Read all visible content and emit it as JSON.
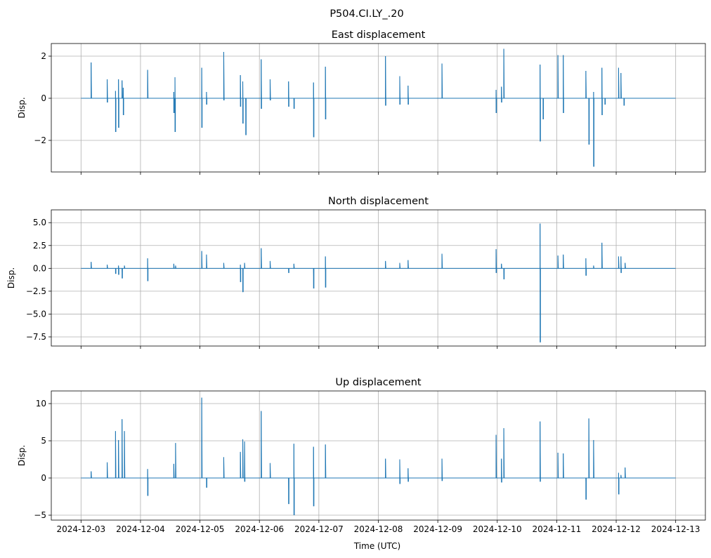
{
  "chart_data": {
    "type": "line",
    "suptitle": "P504.CI.LY_.20",
    "xlabel": "Time (UTC)",
    "x_unit": "days since 2024-12-03 00:00 UTC",
    "xlim": [
      -0.5,
      10.5
    ],
    "data_range": [
      0,
      10
    ],
    "x_tick_labels": [
      "2024-12-03",
      "2024-12-04",
      "2024-12-05",
      "2024-12-06",
      "2024-12-07",
      "2024-12-08",
      "2024-12-09",
      "2024-12-10",
      "2024-12-11",
      "2024-12-12",
      "2024-12-13"
    ],
    "color": "#1f77b4",
    "grid": true,
    "panels": [
      {
        "title": "East displacement",
        "ylabel": "Disp.",
        "ylim": [
          -3.5,
          2.6
        ],
        "yticks": [
          -2,
          0,
          2
        ],
        "ytick_labels": [
          "−2",
          "0",
          "2"
        ],
        "spikes": [
          [
            0.17,
            1.7,
            0
          ],
          [
            0.44,
            0.9,
            -0.2
          ],
          [
            0.58,
            0.35,
            -1.6
          ],
          [
            0.63,
            0.9,
            -1.4
          ],
          [
            0.69,
            0.85,
            0
          ],
          [
            0.71,
            0.5,
            -0.8
          ],
          [
            1.12,
            1.35,
            0
          ],
          [
            1.56,
            0.3,
            -0.7
          ],
          [
            1.58,
            1.0,
            -1.6
          ],
          [
            2.03,
            1.45,
            -1.4
          ],
          [
            2.11,
            0.3,
            -0.3
          ],
          [
            2.4,
            2.2,
            -0.1
          ],
          [
            2.68,
            1.1,
            -0.4
          ],
          [
            2.72,
            0.8,
            -1.2
          ],
          [
            2.77,
            0,
            -1.75
          ],
          [
            3.03,
            1.85,
            -0.5
          ],
          [
            3.18,
            0.9,
            -0.1
          ],
          [
            3.49,
            0.8,
            -0.4
          ],
          [
            3.58,
            0,
            -0.5
          ],
          [
            3.91,
            0.75,
            -1.85
          ],
          [
            4.11,
            1.5,
            -1.0
          ],
          [
            5.12,
            2.0,
            -0.35
          ],
          [
            5.36,
            1.05,
            -0.3
          ],
          [
            5.5,
            0.6,
            -0.3
          ],
          [
            6.07,
            1.65,
            0
          ],
          [
            6.98,
            0.4,
            -0.7
          ],
          [
            7.07,
            0.55,
            -0.2
          ],
          [
            7.11,
            2.35,
            0
          ],
          [
            7.72,
            1.6,
            -2.05
          ],
          [
            7.77,
            0,
            -1.0
          ],
          [
            8.02,
            2.05,
            0
          ],
          [
            8.11,
            2.05,
            -0.7
          ],
          [
            8.49,
            1.3,
            0
          ],
          [
            8.54,
            0,
            -2.2
          ],
          [
            8.62,
            0.3,
            -3.25
          ],
          [
            8.76,
            1.45,
            -0.8
          ],
          [
            8.81,
            0,
            -0.3
          ],
          [
            9.04,
            1.45,
            0
          ],
          [
            9.08,
            1.2,
            0
          ],
          [
            9.13,
            0,
            -0.35
          ]
        ]
      },
      {
        "title": "North displacement",
        "ylabel": "Disp.",
        "ylim": [
          -8.5,
          6.4
        ],
        "yticks": [
          -7.5,
          -5,
          -2.5,
          0,
          2.5,
          5
        ],
        "ytick_labels": [
          "−7.5",
          "−5.0",
          "−2.5",
          "0.0",
          "2.5",
          "5.0"
        ],
        "spikes": [
          [
            0.17,
            0.7,
            0
          ],
          [
            0.44,
            0.4,
            0
          ],
          [
            0.58,
            0,
            -0.6
          ],
          [
            0.63,
            0.3,
            -0.7
          ],
          [
            0.69,
            0,
            -1.1
          ],
          [
            0.73,
            0.3,
            0
          ],
          [
            1.12,
            1.1,
            -1.4
          ],
          [
            1.56,
            0.5,
            0
          ],
          [
            1.59,
            0.3,
            0
          ],
          [
            2.03,
            1.9,
            0
          ],
          [
            2.11,
            1.5,
            0
          ],
          [
            2.4,
            0.6,
            0
          ],
          [
            2.68,
            0.4,
            -1.5
          ],
          [
            2.72,
            0,
            -2.6
          ],
          [
            2.75,
            0.6,
            0
          ],
          [
            3.03,
            2.2,
            0
          ],
          [
            3.18,
            0.8,
            0
          ],
          [
            3.49,
            0,
            -0.5
          ],
          [
            3.58,
            0.5,
            0
          ],
          [
            3.91,
            0,
            -2.2
          ],
          [
            4.11,
            1.3,
            -2.1
          ],
          [
            5.12,
            0.8,
            0
          ],
          [
            5.36,
            0.6,
            0
          ],
          [
            5.5,
            0.9,
            0
          ],
          [
            6.07,
            1.6,
            0
          ],
          [
            6.98,
            2.1,
            -0.5
          ],
          [
            7.07,
            0.5,
            0
          ],
          [
            7.11,
            0,
            -1.2
          ],
          [
            7.72,
            4.9,
            -8.1
          ],
          [
            8.02,
            1.4,
            0
          ],
          [
            8.11,
            1.5,
            0
          ],
          [
            8.49,
            1.1,
            -0.8
          ],
          [
            8.62,
            0.3,
            0
          ],
          [
            8.76,
            2.8,
            0
          ],
          [
            9.04,
            1.3,
            0
          ],
          [
            9.08,
            1.3,
            -0.5
          ],
          [
            9.15,
            0.6,
            0
          ]
        ]
      },
      {
        "title": "Up displacement",
        "ylabel": "Disp.",
        "ylim": [
          -5.66,
          11.7
        ],
        "yticks": [
          -5,
          0,
          5,
          10
        ],
        "ytick_labels": [
          "−5",
          "0",
          "5",
          "10"
        ],
        "spikes": [
          [
            0.17,
            0.9,
            0
          ],
          [
            0.44,
            2.1,
            0
          ],
          [
            0.58,
            6.3,
            0
          ],
          [
            0.63,
            5.1,
            0
          ],
          [
            0.69,
            7.9,
            0
          ],
          [
            0.73,
            6.3,
            0
          ],
          [
            1.12,
            1.2,
            -2.4
          ],
          [
            1.56,
            1.9,
            0
          ],
          [
            1.59,
            4.7,
            0
          ],
          [
            2.03,
            10.8,
            0
          ],
          [
            2.11,
            0,
            -1.3
          ],
          [
            2.4,
            2.8,
            0
          ],
          [
            2.68,
            3.5,
            0
          ],
          [
            2.72,
            5.2,
            0
          ],
          [
            2.75,
            4.9,
            -0.5
          ],
          [
            3.03,
            9.0,
            0
          ],
          [
            3.18,
            2.0,
            0
          ],
          [
            3.49,
            0,
            -3.5
          ],
          [
            3.58,
            4.6,
            -5.0
          ],
          [
            3.91,
            4.2,
            -3.8
          ],
          [
            4.11,
            4.5,
            0
          ],
          [
            5.12,
            2.6,
            0
          ],
          [
            5.36,
            2.5,
            -0.8
          ],
          [
            5.5,
            1.3,
            -0.5
          ],
          [
            6.07,
            2.6,
            -0.4
          ],
          [
            6.98,
            5.8,
            0
          ],
          [
            7.07,
            2.6,
            -0.6
          ],
          [
            7.11,
            6.7,
            0
          ],
          [
            7.72,
            7.6,
            -0.5
          ],
          [
            8.02,
            3.4,
            0
          ],
          [
            8.11,
            3.3,
            0
          ],
          [
            8.49,
            0,
            -2.9
          ],
          [
            8.54,
            8.0,
            0
          ],
          [
            8.62,
            5.1,
            0
          ],
          [
            9.04,
            0.7,
            -2.2
          ],
          [
            9.08,
            0.4,
            0
          ],
          [
            9.15,
            1.4,
            0
          ]
        ]
      }
    ]
  }
}
